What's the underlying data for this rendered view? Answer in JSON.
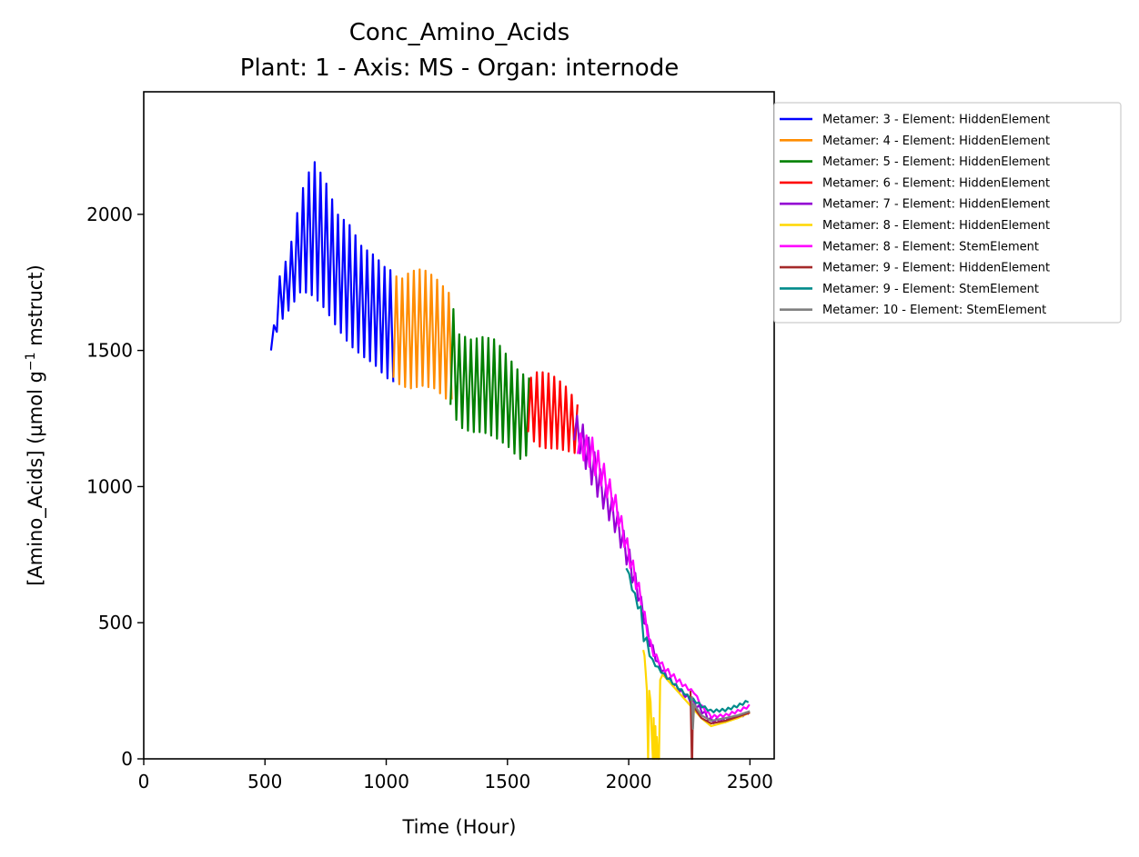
{
  "chart_data": {
    "type": "line",
    "title": "Conc_Amino_Acids",
    "subtitle": "Plant: 1 - Axis: MS - Organ: internode",
    "xlabel": "Time (Hour)",
    "ylabel_main": "[Amino_Acids] (µmol g",
    "ylabel_sup": "−1",
    "ylabel_tail": " mstruct)",
    "xlim": [
      0,
      2600
    ],
    "ylim": [
      0,
      2450
    ],
    "xticks": [
      0,
      500,
      1000,
      1500,
      2000,
      2500
    ],
    "yticks": [
      0,
      500,
      1000,
      1500,
      2000
    ],
    "xtick_labels": [
      "0",
      "500",
      "1000",
      "1500",
      "2000",
      "2500"
    ],
    "ytick_labels": [
      "0",
      "500",
      "1000",
      "1500",
      "2000"
    ],
    "grid": false,
    "legend_position": "outside-top-right",
    "series": [
      {
        "name": "Metamer: 3 - Element: HiddenElement",
        "color": "#0000ff",
        "oscillating": true,
        "period": 24,
        "x": [
          525,
          560,
          600,
          650,
          700,
          750,
          800,
          850,
          900,
          950,
          1000,
          1035
        ],
        "upper": [
          1500,
          1770,
          1860,
          2080,
          2200,
          2120,
          2000,
          1960,
          1880,
          1850,
          1800,
          1790
        ],
        "lower": [
          1500,
          1600,
          1650,
          1720,
          1700,
          1650,
          1580,
          1520,
          1480,
          1450,
          1400,
          1380
        ]
      },
      {
        "name": "Metamer: 4 - Element: HiddenElement",
        "color": "#ff8c00",
        "oscillating": true,
        "period": 24,
        "x": [
          1030,
          1060,
          1100,
          1150,
          1200,
          1250,
          1270
        ],
        "upper": [
          1780,
          1760,
          1790,
          1800,
          1770,
          1720,
          1700
        ],
        "lower": [
          1400,
          1370,
          1360,
          1370,
          1360,
          1320,
          1320
        ]
      },
      {
        "name": "Metamer: 5 - Element: HiddenElement",
        "color": "#008000",
        "oscillating": true,
        "period": 24,
        "x": [
          1265,
          1300,
          1350,
          1400,
          1450,
          1500,
          1550,
          1590
        ],
        "upper": [
          1700,
          1560,
          1540,
          1550,
          1540,
          1480,
          1420,
          1400
        ],
        "lower": [
          1300,
          1220,
          1200,
          1200,
          1180,
          1150,
          1100,
          1120
        ]
      },
      {
        "name": "Metamer: 6 - Element: HiddenElement",
        "color": "#ff0000",
        "oscillating": true,
        "period": 24,
        "x": [
          1585,
          1620,
          1660,
          1700,
          1750,
          1790
        ],
        "upper": [
          1390,
          1420,
          1420,
          1400,
          1360,
          1300
        ],
        "lower": [
          1200,
          1150,
          1140,
          1140,
          1130,
          1120
        ]
      },
      {
        "name": "Metamer: 7 - Element: HiddenElement",
        "color": "#9400d3",
        "oscillating": true,
        "period": 24,
        "x": [
          1775,
          1800,
          1850,
          1900,
          1950,
          2000,
          2050,
          2080,
          2120,
          2160,
          2200,
          2250,
          2300,
          2340,
          2400,
          2450,
          2500
        ],
        "upper": [
          1270,
          1250,
          1150,
          1020,
          920,
          780,
          600,
          470,
          360,
          310,
          270,
          230,
          190,
          150,
          150,
          160,
          175
        ],
        "lower": [
          1170,
          1120,
          1000,
          910,
          820,
          690,
          550,
          430,
          340,
          290,
          250,
          210,
          170,
          130,
          135,
          150,
          165
        ]
      },
      {
        "name": "Metamer: 8 - Element: HiddenElement",
        "color": "#ffd700",
        "oscillating": false,
        "x": [
          2060,
          2065,
          2070,
          2075,
          2080,
          2085,
          2090,
          2095,
          2100,
          2103,
          2106,
          2110,
          2113,
          2116,
          2120,
          2125,
          2130,
          2140,
          2160,
          2200,
          2250,
          2300,
          2340,
          2400,
          2450,
          2500
        ],
        "y": [
          400,
          380,
          320,
          250,
          0,
          250,
          210,
          90,
          0,
          150,
          0,
          120,
          0,
          80,
          0,
          0,
          290,
          310,
          290,
          250,
          200,
          150,
          120,
          135,
          150,
          170
        ]
      },
      {
        "name": "Metamer: 8 - Element: StemElement",
        "color": "#ff00ff",
        "oscillating": true,
        "period": 24,
        "x": [
          1790,
          1850,
          1900,
          1950,
          2000,
          2050,
          2080,
          2100,
          2150,
          2200,
          2250,
          2270,
          2300,
          2340,
          2400,
          2450,
          2500
        ],
        "upper": [
          1200,
          1180,
          1080,
          960,
          790,
          620,
          470,
          400,
          340,
          300,
          260,
          250,
          200,
          160,
          165,
          180,
          200
        ],
        "lower": [
          1120,
          1060,
          980,
          880,
          720,
          560,
          440,
          380,
          320,
          280,
          250,
          240,
          190,
          150,
          155,
          170,
          190
        ]
      },
      {
        "name": "Metamer: 9 - Element: HiddenElement",
        "color": "#a52a2a",
        "oscillating": false,
        "x": [
          2255,
          2260,
          2262,
          2265,
          2270,
          2300,
          2340,
          2400,
          2450,
          2500
        ],
        "y": [
          250,
          0,
          0,
          200,
          190,
          150,
          130,
          140,
          155,
          170
        ]
      },
      {
        "name": "Metamer: 9 - Element: StemElement",
        "color": "#008b8b",
        "oscillating": true,
        "period": 24,
        "x": [
          1990,
          2020,
          2050,
          2065,
          2075,
          2100,
          2150,
          2200,
          2250,
          2270,
          2300,
          2340,
          2400,
          2450,
          2500
        ],
        "upper": [
          720,
          620,
          560,
          500,
          440,
          360,
          310,
          270,
          230,
          220,
          200,
          180,
          185,
          200,
          220
        ],
        "lower": [
          700,
          600,
          520,
          410,
          400,
          350,
          300,
          260,
          220,
          210,
          190,
          170,
          175,
          190,
          210
        ]
      },
      {
        "name": "Metamer: 10 - Element: StemElement",
        "color": "#808080",
        "oscillating": false,
        "x": [
          2260,
          2265,
          2270,
          2300,
          2340,
          2400,
          2450,
          2500
        ],
        "y": [
          230,
          110,
          200,
          160,
          140,
          150,
          160,
          175
        ]
      }
    ]
  }
}
